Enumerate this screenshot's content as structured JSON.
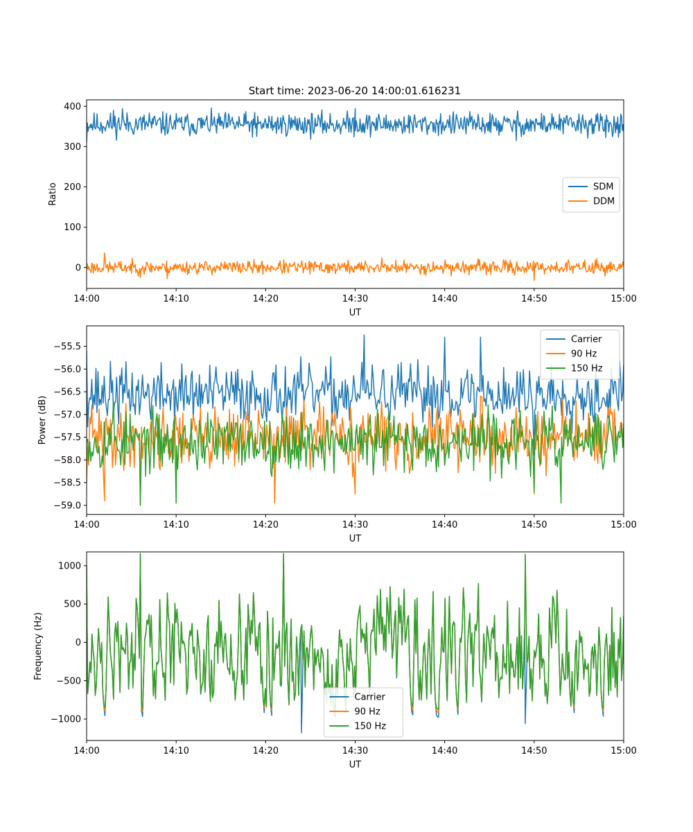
{
  "figure": {
    "title": "Start time: 2023-06-20 14:00:01.616231"
  },
  "chart_data": [
    {
      "type": "line",
      "title": "Start time: 2023-06-20 14:00:01.616231",
      "xlabel": "UT",
      "ylabel": "Ratio",
      "x_range": [
        "14:00",
        "15:00"
      ],
      "x_ticks": [
        "14:00",
        "14:10",
        "14:20",
        "14:30",
        "14:40",
        "14:50",
        "15:00"
      ],
      "ylim": [
        -52,
        416
      ],
      "y_ticks": [
        0,
        100,
        200,
        300,
        400
      ],
      "y_tick_labels": [
        "0",
        "100",
        "200",
        "300",
        "400"
      ],
      "legend_position": "center-right",
      "grid": false,
      "series": [
        {
          "name": "SDM",
          "color": "#1f77b4",
          "mean": 355,
          "amplitude": 38,
          "seed": 11,
          "points": 720,
          "x": [
            "14:00",
            "14:03",
            "14:04",
            "14:07",
            "14:19",
            "14:30",
            "14:43",
            "14:48",
            "14:58",
            "15:00"
          ],
          "values": [
            310,
            390,
            394,
            383,
            325,
            394,
            373,
            315,
            322,
            337
          ]
        },
        {
          "name": "DDM",
          "color": "#ff7f0e",
          "mean": 0,
          "amplitude": 22,
          "seed": 23,
          "points": 720,
          "x": [
            "14:00",
            "14:02",
            "14:06",
            "14:09",
            "14:33",
            "14:50",
            "14:57",
            "15:00"
          ],
          "values": [
            -5,
            36,
            -25,
            -28,
            24,
            -32,
            22,
            5
          ]
        }
      ]
    },
    {
      "type": "line",
      "xlabel": "UT",
      "ylabel": "Power (dB)",
      "x_range": [
        "14:00",
        "15:00"
      ],
      "x_ticks": [
        "14:00",
        "14:10",
        "14:20",
        "14:30",
        "14:40",
        "14:50",
        "15:00"
      ],
      "ylim": [
        -59.2,
        -55.05
      ],
      "y_ticks": [
        -59.0,
        -58.5,
        -58.0,
        -57.5,
        -57.0,
        -56.5,
        -56.0,
        -55.5
      ],
      "y_tick_labels": [
        "−59.0",
        "−58.5",
        "−58.0",
        "−57.5",
        "−57.0",
        "−56.5",
        "−56.0",
        "−55.5"
      ],
      "legend_position": "top-right",
      "grid": false,
      "series": [
        {
          "name": "Carrier",
          "color": "#1f77b4",
          "mean": -56.55,
          "amplitude": 0.85,
          "seed": 37,
          "points": 520,
          "x": [
            "14:00",
            "14:31",
            "14:40",
            "14:44",
            "14:50",
            "15:00"
          ],
          "values": [
            -55.6,
            -55.25,
            -55.3,
            -55.3,
            -57.9,
            -55.9
          ]
        },
        {
          "name": "90 Hz",
          "color": "#ff7f0e",
          "mean": -57.5,
          "amplitude": 0.9,
          "seed": 41,
          "points": 520,
          "x": [
            "14:00",
            "14:02",
            "14:06",
            "14:21",
            "14:30",
            "14:44",
            "14:50",
            "15:00"
          ],
          "values": [
            -58.5,
            -58.9,
            -59.0,
            -58.95,
            -58.75,
            -56.6,
            -58.75,
            -57.3
          ]
        },
        {
          "name": "150 Hz",
          "color": "#2ca02c",
          "mean": -57.6,
          "amplitude": 0.85,
          "seed": 53,
          "points": 520,
          "x": [
            "14:00",
            "14:03",
            "14:06",
            "14:10",
            "14:50",
            "14:53",
            "15:00"
          ],
          "values": [
            -57.6,
            -56.7,
            -59.0,
            -58.95,
            -58.7,
            -58.95,
            -57.2
          ]
        }
      ]
    },
    {
      "type": "line",
      "xlabel": "UT",
      "ylabel": "Frequency (Hz)",
      "x_range": [
        "14:00",
        "15:00"
      ],
      "x_ticks": [
        "14:00",
        "14:10",
        "14:20",
        "14:30",
        "14:40",
        "14:50",
        "15:00"
      ],
      "ylim": [
        -1280,
        1180
      ],
      "y_ticks": [
        -1000,
        -500,
        0,
        500,
        1000
      ],
      "y_tick_labels": [
        "−1000",
        "−500",
        "0",
        "500",
        "1000"
      ],
      "legend_position": "lower-center",
      "grid": false,
      "series": [
        {
          "name": "Carrier",
          "color": "#1f77b4",
          "amplitude": 980,
          "seed": 67,
          "points": 500,
          "offset": -40,
          "x": [
            "14:00",
            "14:06",
            "14:22",
            "14:24",
            "14:49",
            "15:00"
          ],
          "values": [
            1000,
            1150,
            1150,
            -1180,
            -1060,
            300
          ]
        },
        {
          "name": "90 Hz",
          "color": "#ff7f0e",
          "amplitude": 980,
          "seed": 67,
          "points": 500,
          "offset": 20,
          "x": [
            "14:00",
            "14:06",
            "14:22",
            "14:49",
            "15:00"
          ],
          "values": [
            1000,
            1150,
            1150,
            1140,
            320
          ]
        },
        {
          "name": "150 Hz",
          "color": "#2ca02c",
          "amplitude": 980,
          "seed": 67,
          "points": 500,
          "offset": 60,
          "x": [
            "14:00",
            "14:06",
            "14:22",
            "14:49",
            "15:00"
          ],
          "values": [
            1000,
            1160,
            1160,
            1150,
            350
          ]
        }
      ]
    }
  ]
}
